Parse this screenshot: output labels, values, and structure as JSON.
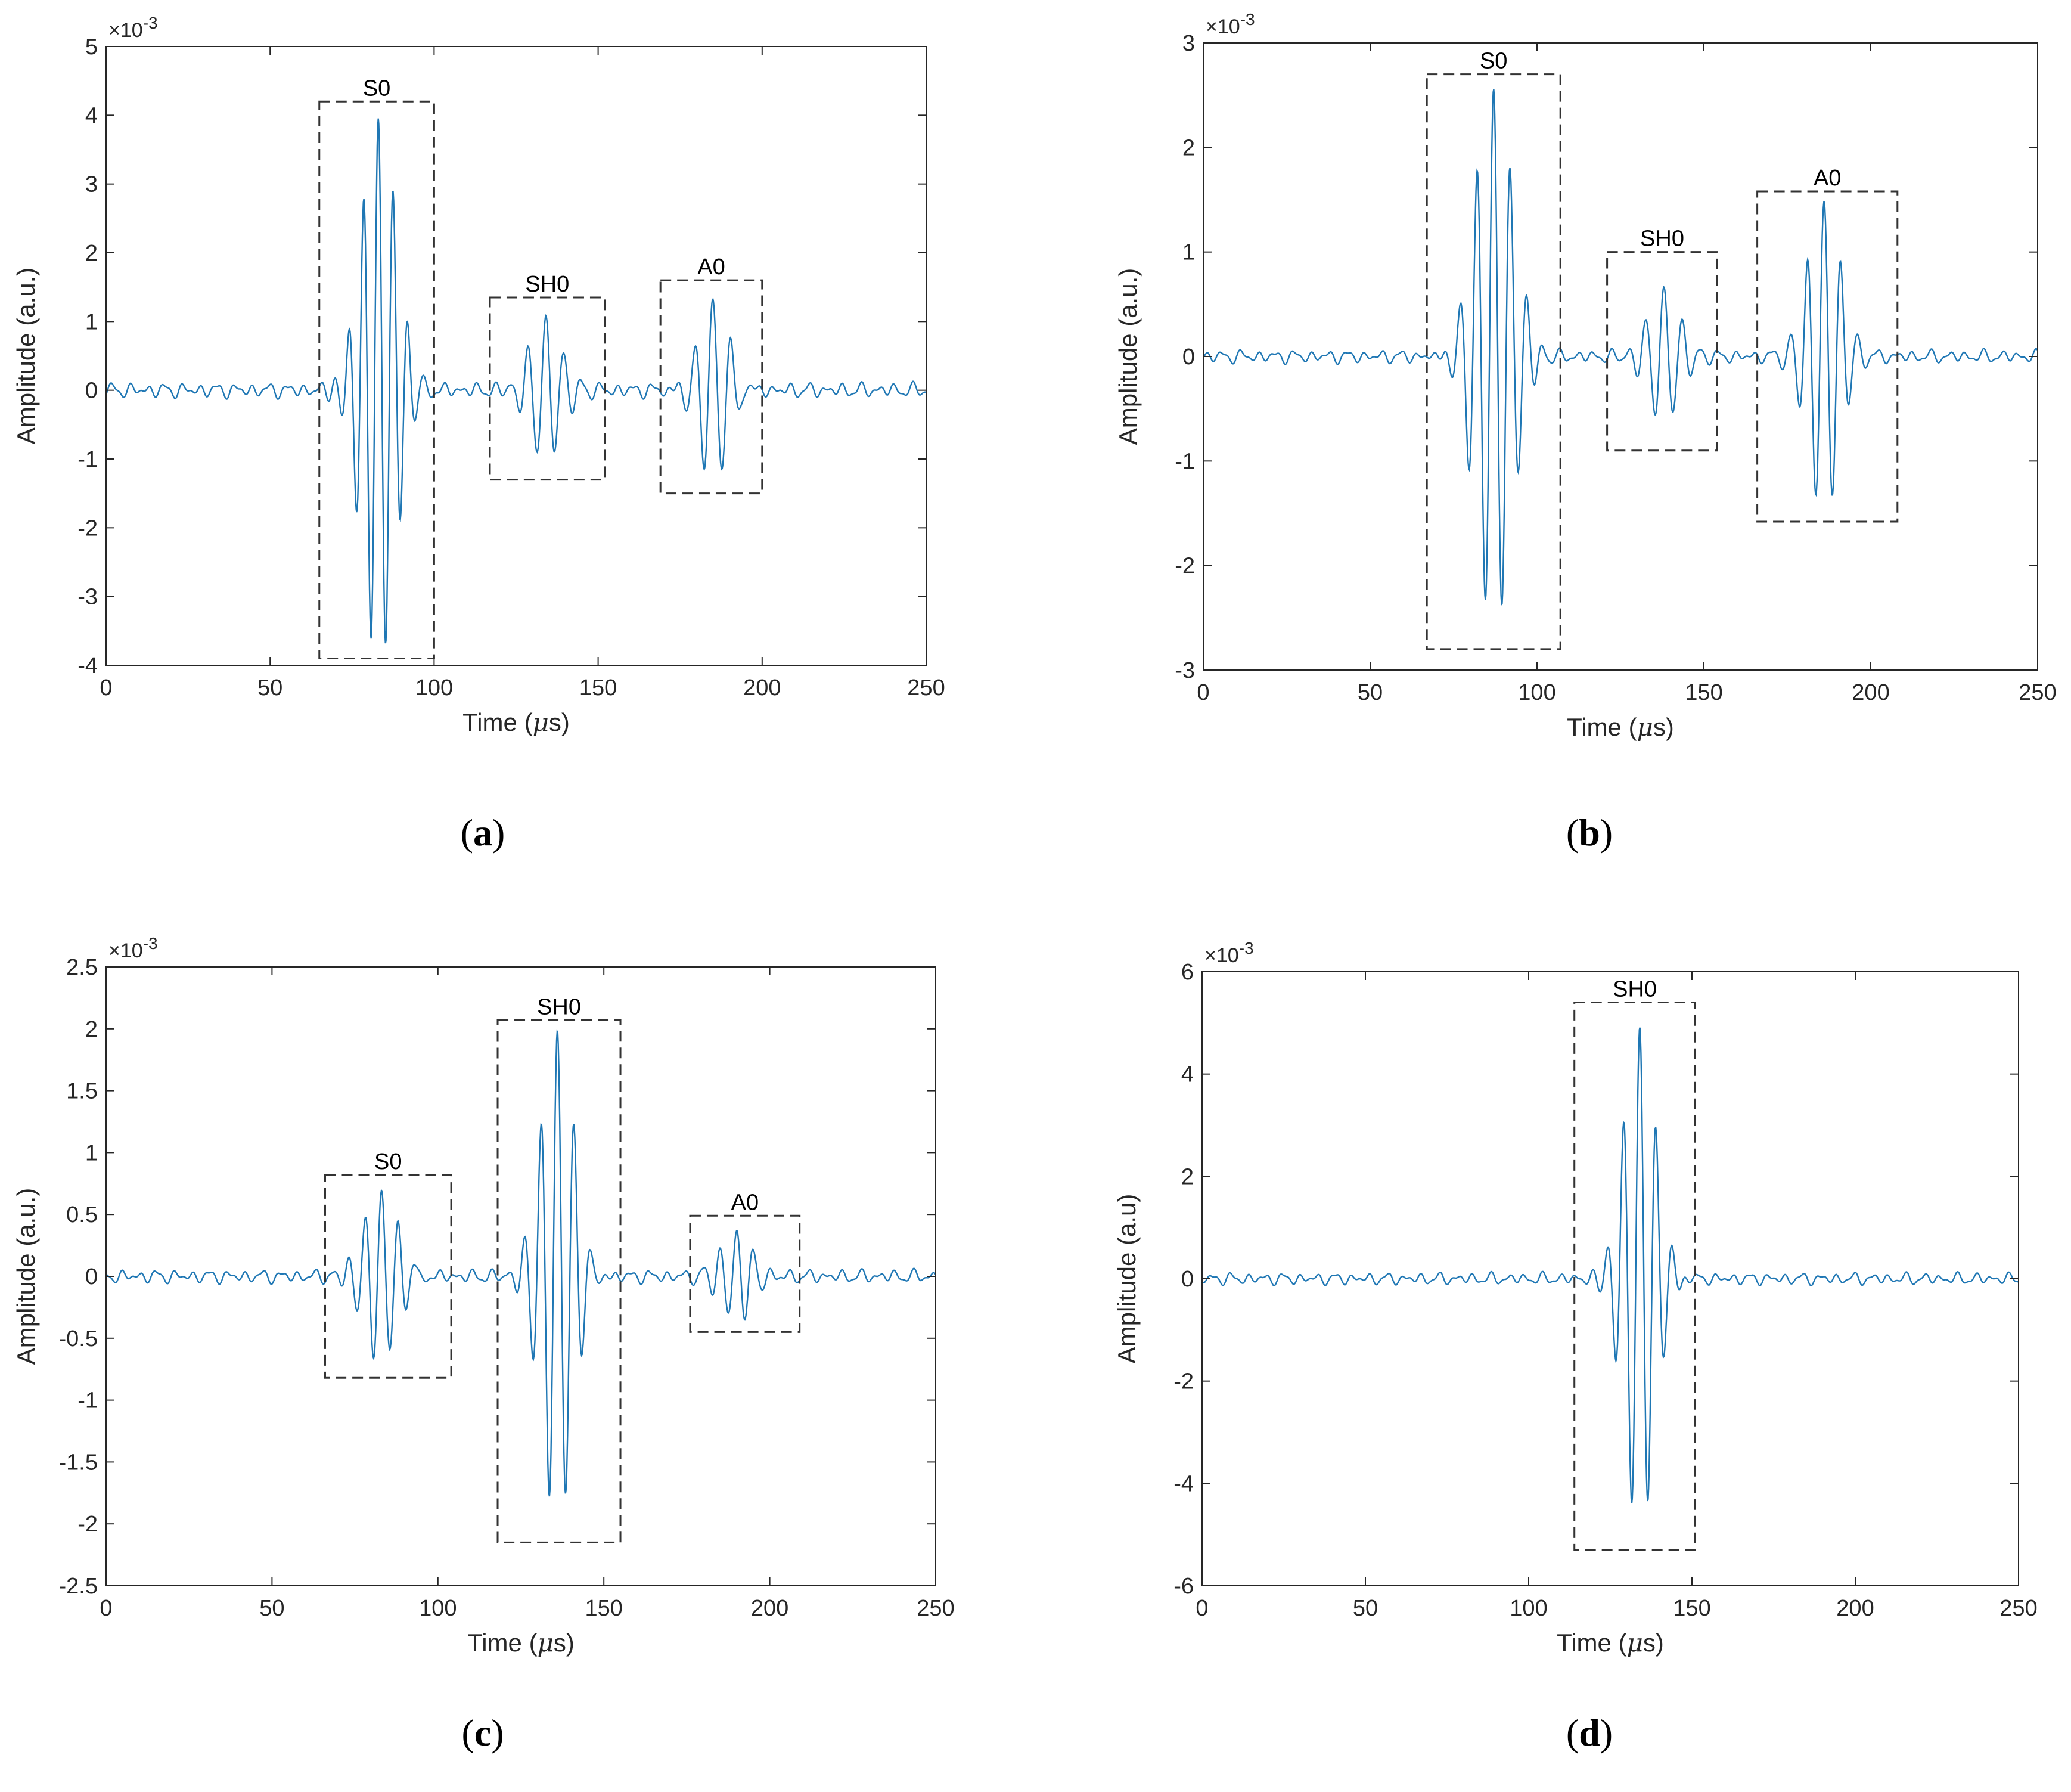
{
  "colors": {
    "signal": "#1f77b4",
    "axis": "#262626",
    "box": "#333333"
  },
  "chart_data": [
    {
      "id": "a",
      "caption_open": "(",
      "caption_letter": "a",
      "caption_close": ")",
      "type": "line",
      "xlabel_pre": "Time (",
      "xlabel_mu": "μ",
      "xlabel_post": "s)",
      "ylabel": "Amplitude (a.u.)",
      "exponent_base": "×10",
      "exponent_power": "-3",
      "xlim": [
        0,
        250
      ],
      "ylim": [
        -4,
        5
      ],
      "xticks": [
        0,
        50,
        100,
        150,
        200,
        250
      ],
      "yticks": [
        -4,
        -3,
        -2,
        -1,
        0,
        1,
        2,
        3,
        4,
        5
      ],
      "ytick_labels": [
        "-4",
        "-3",
        "-2",
        "-1",
        "0",
        "1",
        "2",
        "3",
        "4",
        "5"
      ],
      "noise_amplitude": 0.12,
      "packets": [
        {
          "center": 83,
          "peak": 4.0,
          "width": 7.5,
          "period": 4.5
        },
        {
          "center": 134,
          "peak": 1.0,
          "width": 7,
          "period": 5.5
        },
        {
          "center": 185,
          "peak": 1.4,
          "width": 7,
          "period": 5.5
        }
      ],
      "boxes": [
        {
          "label": "S0",
          "x0": 65,
          "x1": 100,
          "y0": -3.9,
          "y1": 4.2
        },
        {
          "label": "SH0",
          "x0": 117,
          "x1": 152,
          "y0": -1.3,
          "y1": 1.35
        },
        {
          "label": "A0",
          "x0": 169,
          "x1": 200,
          "y0": -1.5,
          "y1": 1.6
        }
      ]
    },
    {
      "id": "b",
      "caption_open": "(",
      "caption_letter": "b",
      "caption_close": ")",
      "type": "line",
      "xlabel_pre": "Time (",
      "xlabel_mu": "μ",
      "xlabel_post": "s)",
      "ylabel": "Amplitude (a.u.)",
      "exponent_base": "×10",
      "exponent_power": "-3",
      "xlim": [
        0,
        250
      ],
      "ylim": [
        -3,
        3
      ],
      "xticks": [
        0,
        50,
        100,
        150,
        200,
        250
      ],
      "yticks": [
        -3,
        -2,
        -1,
        0,
        1,
        2,
        3
      ],
      "ytick_labels": [
        "-3",
        "-2",
        "-1",
        "0",
        "1",
        "2",
        "3"
      ],
      "noise_amplitude": 0.07,
      "packets": [
        {
          "center": 87,
          "peak": 2.6,
          "width": 8,
          "period": 5
        },
        {
          "center": 138,
          "peak": 0.6,
          "width": 7,
          "period": 5.5
        },
        {
          "center": 186,
          "peak": 1.45,
          "width": 7,
          "period": 5
        }
      ],
      "boxes": [
        {
          "label": "S0",
          "x0": 67,
          "x1": 107,
          "y0": -2.8,
          "y1": 2.7
        },
        {
          "label": "SH0",
          "x0": 121,
          "x1": 154,
          "y0": -0.9,
          "y1": 1.0
        },
        {
          "label": "A0",
          "x0": 166,
          "x1": 208,
          "y0": -1.58,
          "y1": 1.58
        }
      ]
    },
    {
      "id": "c",
      "caption_open": "(",
      "caption_letter": "c",
      "caption_close": ")",
      "type": "line",
      "xlabel_pre": "Time (",
      "xlabel_mu": "μ",
      "xlabel_post": "s)",
      "ylabel": "Amplitude (a.u.)",
      "exponent_base": "×10",
      "exponent_power": "-3",
      "xlim": [
        0,
        250
      ],
      "ylim": [
        -2.5,
        2.5
      ],
      "xticks": [
        0,
        50,
        100,
        150,
        200,
        250
      ],
      "yticks": [
        -2.5,
        -2,
        -1.5,
        -1,
        -0.5,
        0,
        0.5,
        1,
        1.5,
        2,
        2.5
      ],
      "ytick_labels": [
        "-2.5",
        "-2",
        "-1.5",
        "-1",
        "-0.5",
        "0",
        "0.5",
        "1",
        "1.5",
        "2",
        "2.5"
      ],
      "noise_amplitude": 0.06,
      "packets": [
        {
          "center": 83,
          "peak": 0.7,
          "width": 7.5,
          "period": 5
        },
        {
          "center": 136,
          "peak": 2.0,
          "width": 7,
          "period": 5
        },
        {
          "center": 190,
          "peak": 0.33,
          "width": 7,
          "period": 5
        }
      ],
      "boxes": [
        {
          "label": "S0",
          "x0": 66,
          "x1": 104,
          "y0": -0.82,
          "y1": 0.82
        },
        {
          "label": "SH0",
          "x0": 118,
          "x1": 155,
          "y0": -2.15,
          "y1": 2.07
        },
        {
          "label": "A0",
          "x0": 176,
          "x1": 209,
          "y0": -0.45,
          "y1": 0.49
        }
      ]
    },
    {
      "id": "d",
      "caption_open": "(",
      "caption_letter": "d",
      "caption_close": ")",
      "type": "line",
      "xlabel_pre": "Time (",
      "xlabel_mu": "μ",
      "xlabel_post": "s)",
      "ylabel": "Amplitude (a.u)",
      "exponent_base": "×10",
      "exponent_power": "-3",
      "xlim": [
        0,
        250
      ],
      "ylim": [
        -6,
        6
      ],
      "xticks": [
        0,
        50,
        100,
        150,
        200,
        250
      ],
      "yticks": [
        -6,
        -4,
        -2,
        0,
        2,
        4,
        6
      ],
      "ytick_labels": [
        "-6",
        "-4",
        "-2",
        "0",
        "2",
        "4",
        "6"
      ],
      "noise_amplitude": 0.13,
      "packets": [
        {
          "center": 134,
          "peak": 5.0,
          "width": 7,
          "period": 5
        }
      ],
      "boxes": [
        {
          "label": "SH0",
          "x0": 114,
          "x1": 151,
          "y0": -5.3,
          "y1": 5.4
        }
      ]
    }
  ]
}
